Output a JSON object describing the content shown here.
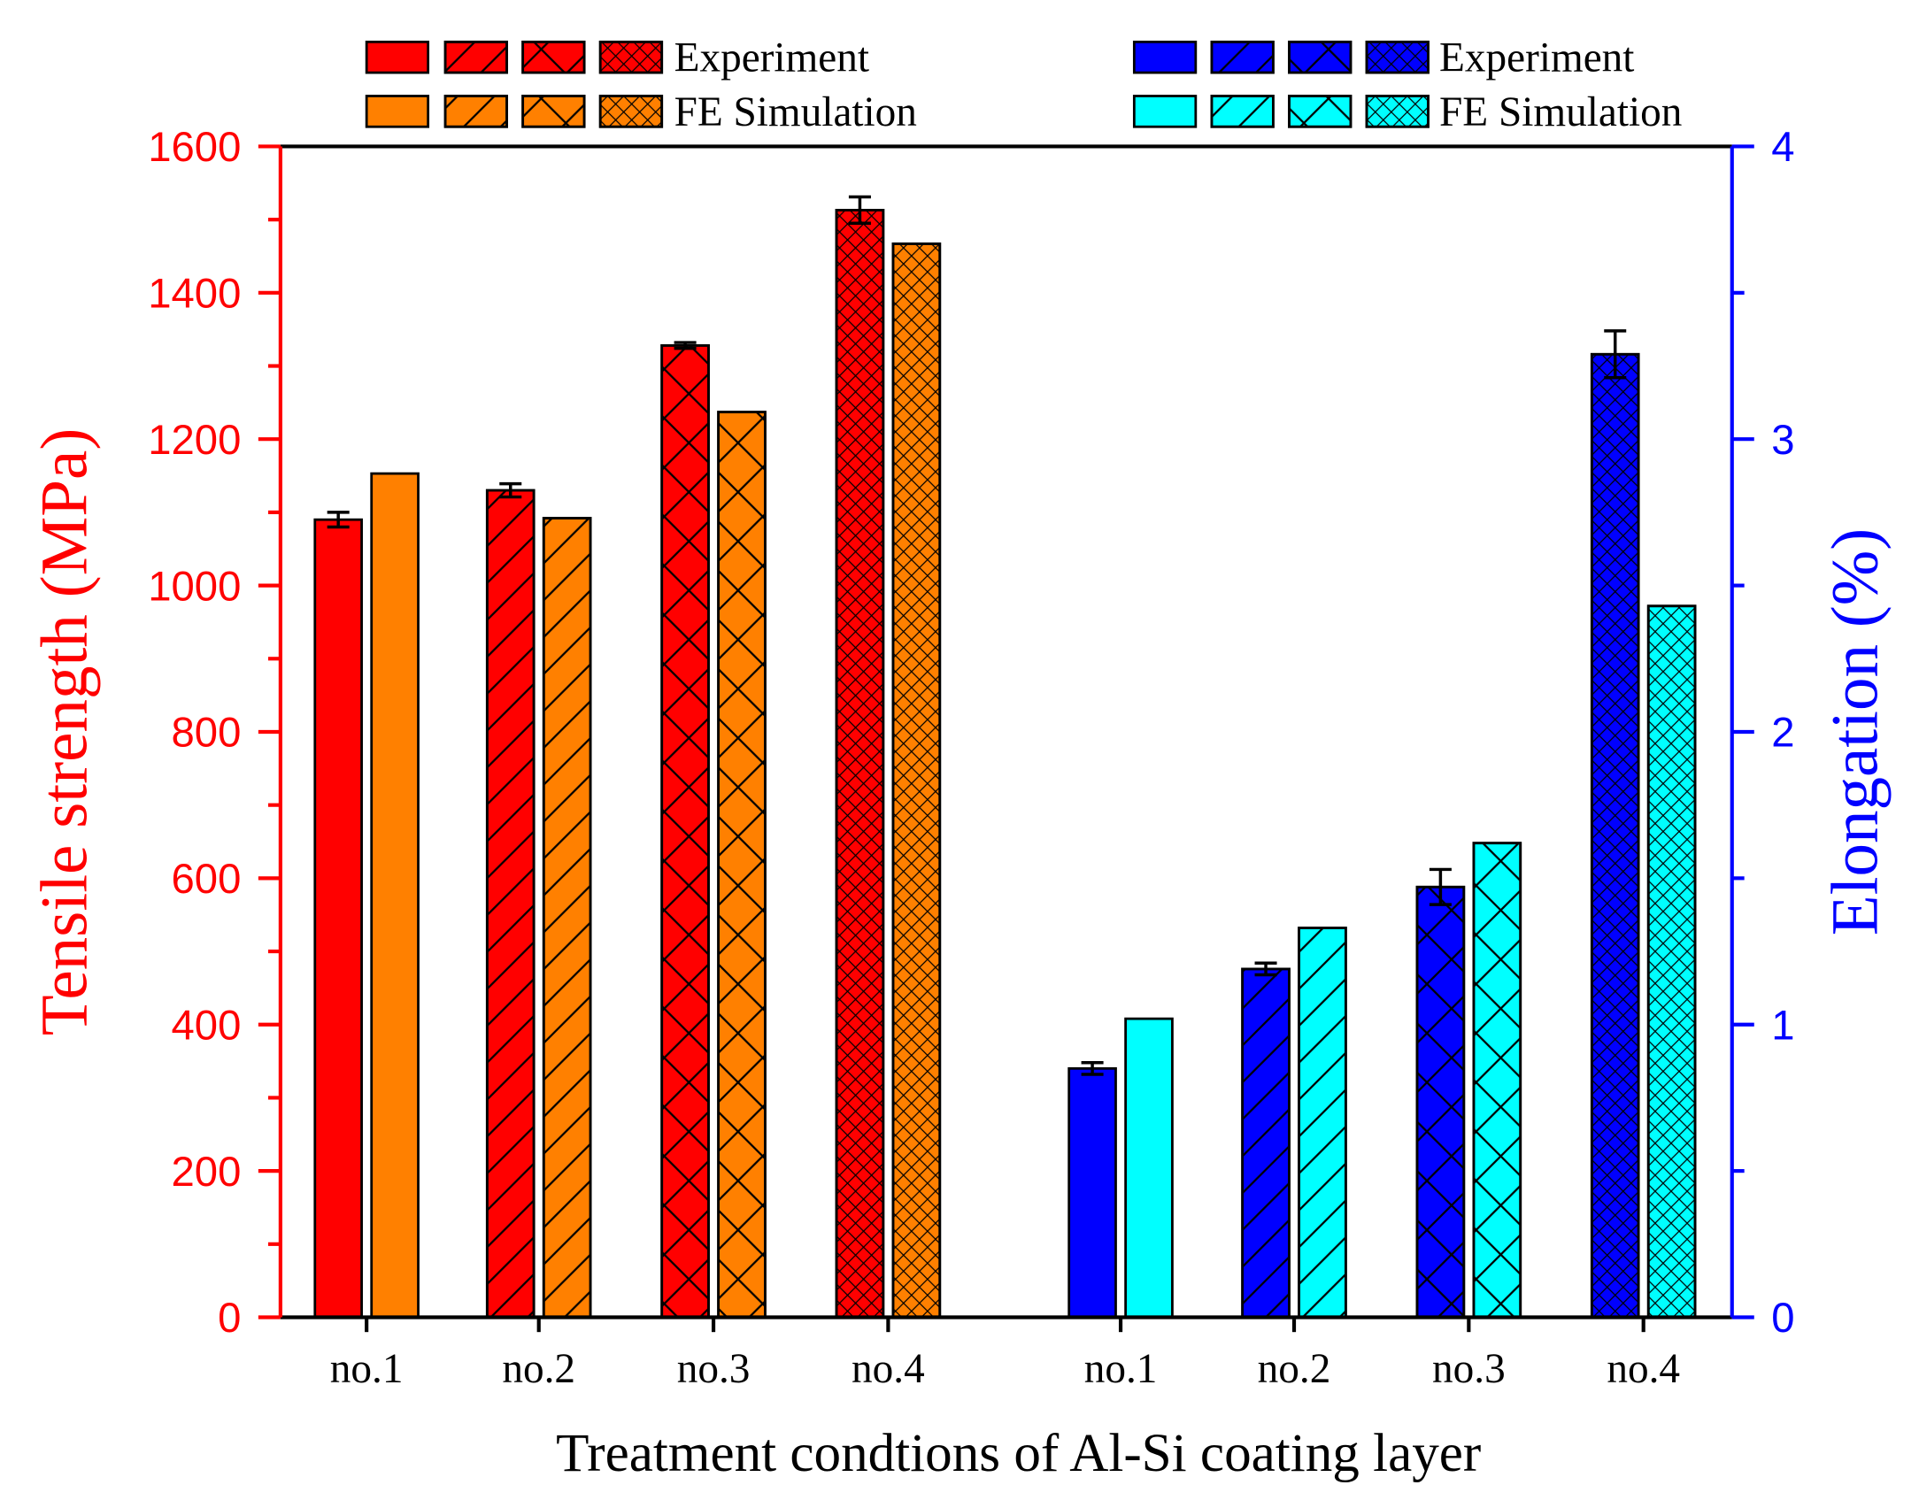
{
  "chart_data": {
    "type": "bar",
    "xlabel": "Treatment condtions of Al-Si coating layer",
    "ylabel_left": "Tensile strength (MPa)",
    "ylabel_right": "Elongation (%)",
    "ylim_left": [
      0,
      1600
    ],
    "ylim_right": [
      0,
      4
    ],
    "yticks_left": [
      "0",
      "200",
      "400",
      "600",
      "800",
      "1000",
      "1200",
      "1400",
      "1600"
    ],
    "yticks_right": [
      "0",
      "1",
      "2",
      "3",
      "4"
    ],
    "grid": false,
    "colors": {
      "strength_exp": "#ff0000",
      "strength_sim": "#ff8000",
      "elong_exp": "#0000ff",
      "elong_sim": "#00ffff",
      "left_axis": "#ff0000",
      "right_axis": "#0000ff"
    },
    "groups": [
      {
        "name": "Tensile strength",
        "axis": "left",
        "categories": [
          "no.1",
          "no.2",
          "no.3",
          "no.4"
        ],
        "series": [
          {
            "name": "Experiment",
            "values": [
              1090,
              1130,
              1328,
              1513
            ],
            "errors": [
              10,
              9,
              4,
              18
            ]
          },
          {
            "name": "FE Simulation",
            "values": [
              1153,
              1092,
              1237,
              1467
            ]
          }
        ]
      },
      {
        "name": "Elongation",
        "axis": "right",
        "categories": [
          "no.1",
          "no.2",
          "no.3",
          "no.4"
        ],
        "series": [
          {
            "name": "Experiment",
            "values": [
              0.85,
              1.19,
              1.47,
              3.29
            ],
            "errors": [
              0.02,
              0.02,
              0.06,
              0.08
            ]
          },
          {
            "name": "FE Simulation",
            "values": [
              1.02,
              1.33,
              1.62,
              2.43
            ]
          }
        ]
      }
    ],
    "patterns": [
      "solid",
      "diagonal",
      "cross",
      "fine-cross"
    ],
    "legend": {
      "placement": "top",
      "left_labels": [
        "Experiment",
        "FE Simulation"
      ],
      "right_labels": [
        "Experiment",
        "FE Simulation"
      ]
    }
  }
}
